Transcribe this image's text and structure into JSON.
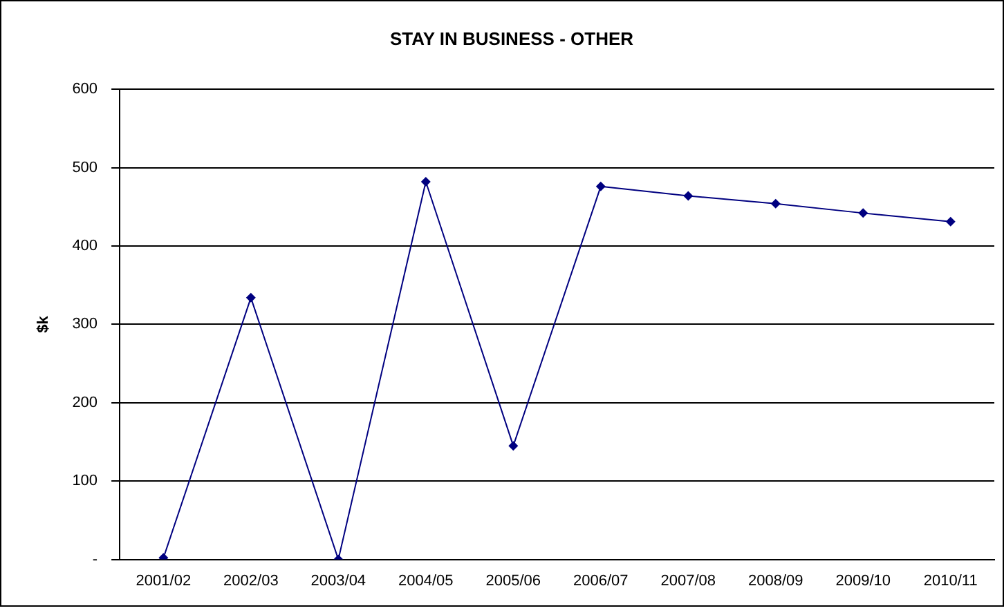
{
  "chart_data": {
    "type": "line",
    "title": "STAY IN BUSINESS - OTHER",
    "ylabel": "$k",
    "categories": [
      "2001/02",
      "2002/03",
      "2003/04",
      "2004/05",
      "2005/06",
      "2006/07",
      "2007/08",
      "2008/09",
      "2009/10",
      "2010/11"
    ],
    "series": [
      {
        "color": "#000080",
        "values": [
          2,
          334,
          0,
          482,
          145,
          476,
          464,
          454,
          442,
          431
        ]
      }
    ],
    "ylim": [
      0,
      600
    ],
    "yticks": [
      {
        "value": 0,
        "label": "-"
      },
      100,
      200,
      300,
      400,
      500,
      600
    ],
    "grid": "y",
    "marker": "diamond",
    "legend": false
  }
}
